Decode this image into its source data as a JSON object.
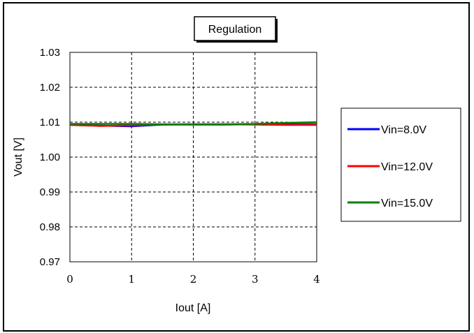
{
  "chart_data": {
    "type": "line",
    "title": "Regulation",
    "xlabel": "Iout [A]",
    "ylabel": "Vout [V]",
    "xlim": [
      0,
      4
    ],
    "ylim": [
      0.97,
      1.03
    ],
    "x_ticks": [
      "0",
      "1",
      "2",
      "3",
      "4"
    ],
    "y_ticks": [
      "0.97",
      "0.98",
      "0.99",
      "1.00",
      "1.01",
      "1.02",
      "1.03"
    ],
    "grid": true,
    "legend_position": "right",
    "series": [
      {
        "name": "Vin=8.0V",
        "color": "#0000ff",
        "x": [
          0,
          0.5,
          1,
          1.5,
          2,
          2.5,
          3,
          3.5,
          4
        ],
        "y": [
          1.0092,
          1.009,
          1.0088,
          1.0093,
          1.0093,
          1.0093,
          1.0094,
          1.0094,
          1.0094
        ]
      },
      {
        "name": "Vin=12.0V",
        "color": "#ff0000",
        "x": [
          0,
          0.5,
          1,
          1.5,
          2,
          2.5,
          3,
          3.5,
          4
        ],
        "y": [
          1.0092,
          1.0089,
          1.0091,
          1.0093,
          1.0094,
          1.0094,
          1.0093,
          1.0092,
          1.0092
        ]
      },
      {
        "name": "Vin=15.0V",
        "color": "#008000",
        "x": [
          0,
          0.5,
          1,
          1.5,
          2,
          2.5,
          3,
          3.5,
          4
        ],
        "y": [
          1.0095,
          1.0095,
          1.0095,
          1.0094,
          1.0094,
          1.0094,
          1.0095,
          1.0098,
          1.01
        ]
      }
    ]
  }
}
